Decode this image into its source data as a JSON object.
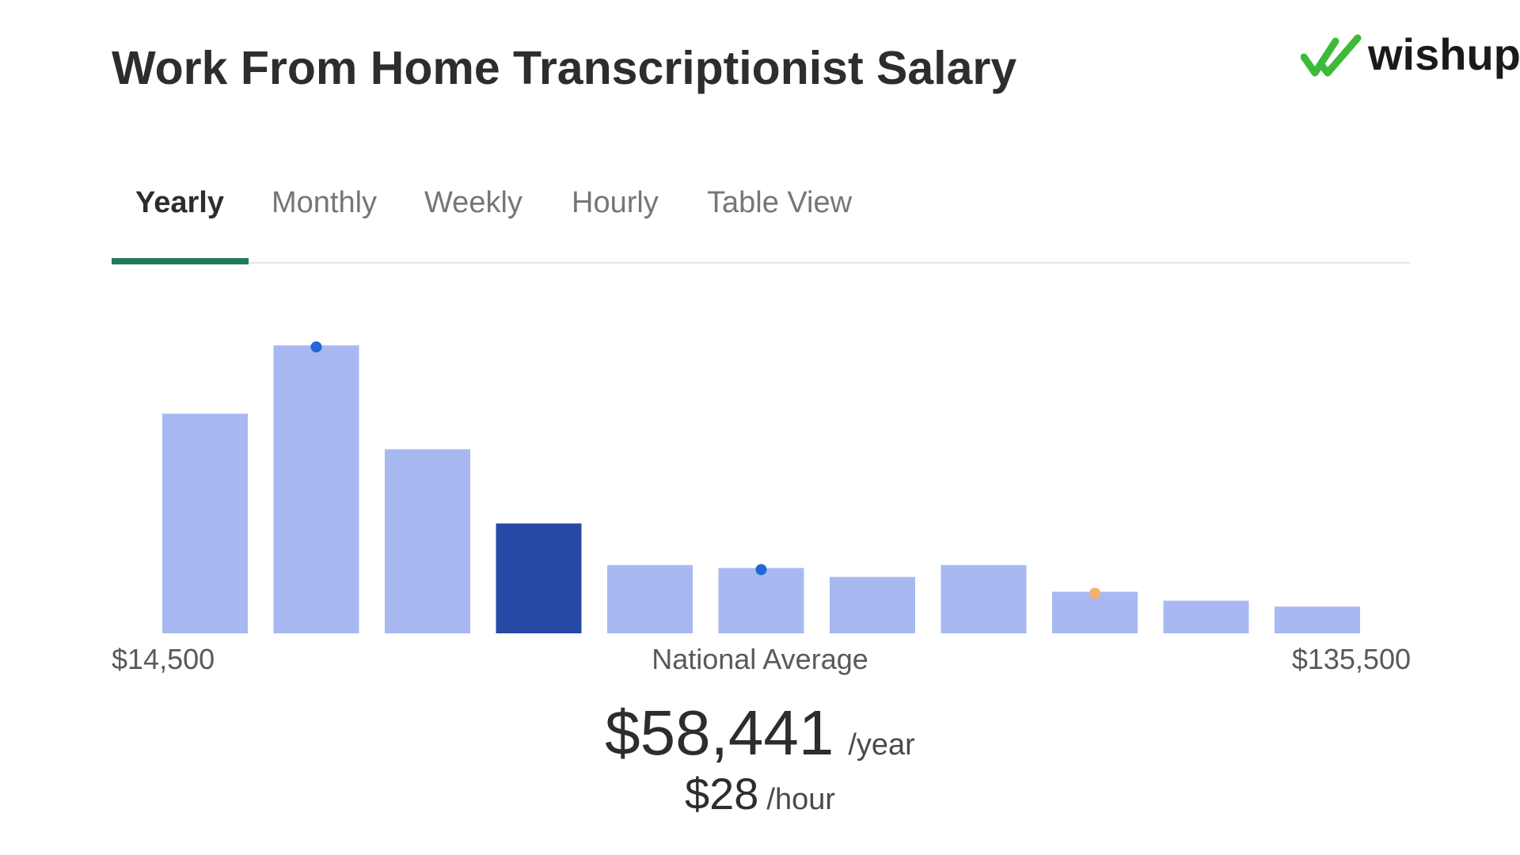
{
  "page": {
    "title": "Work From Home Transcriptionist Salary"
  },
  "logo": {
    "text": "wishup",
    "icon": "double-check-icon",
    "color": "#3fb93a"
  },
  "tabs": [
    {
      "label": "Yearly",
      "active": true
    },
    {
      "label": "Monthly",
      "active": false
    },
    {
      "label": "Weekly",
      "active": false
    },
    {
      "label": "Hourly",
      "active": false
    },
    {
      "label": "Table View",
      "active": false
    }
  ],
  "colors": {
    "bar": "#a8b9f2",
    "bar_highlight": "#2749a6",
    "tab_accent": "#217a5b",
    "marker_blue": "#1f68d6",
    "marker_orange": "#f5b06b"
  },
  "chart_data": {
    "type": "bar",
    "values": [
      74,
      97,
      62,
      37,
      23,
      22,
      19,
      23,
      14,
      11,
      9
    ],
    "highlight_index": 3,
    "markers": [
      {
        "index": 1,
        "color": "#1f68d6"
      },
      {
        "index": 5,
        "color": "#1f68d6"
      },
      {
        "index": 8,
        "color": "#f5b06b"
      }
    ],
    "x_min_label": "$14,500",
    "x_max_label": "$135,500",
    "center_label": "National Average",
    "ylim": [
      0,
      100
    ]
  },
  "average": {
    "yearly_amount": "$58,441",
    "yearly_unit": "/year",
    "hourly_amount": "$28",
    "hourly_unit": "/hour"
  }
}
